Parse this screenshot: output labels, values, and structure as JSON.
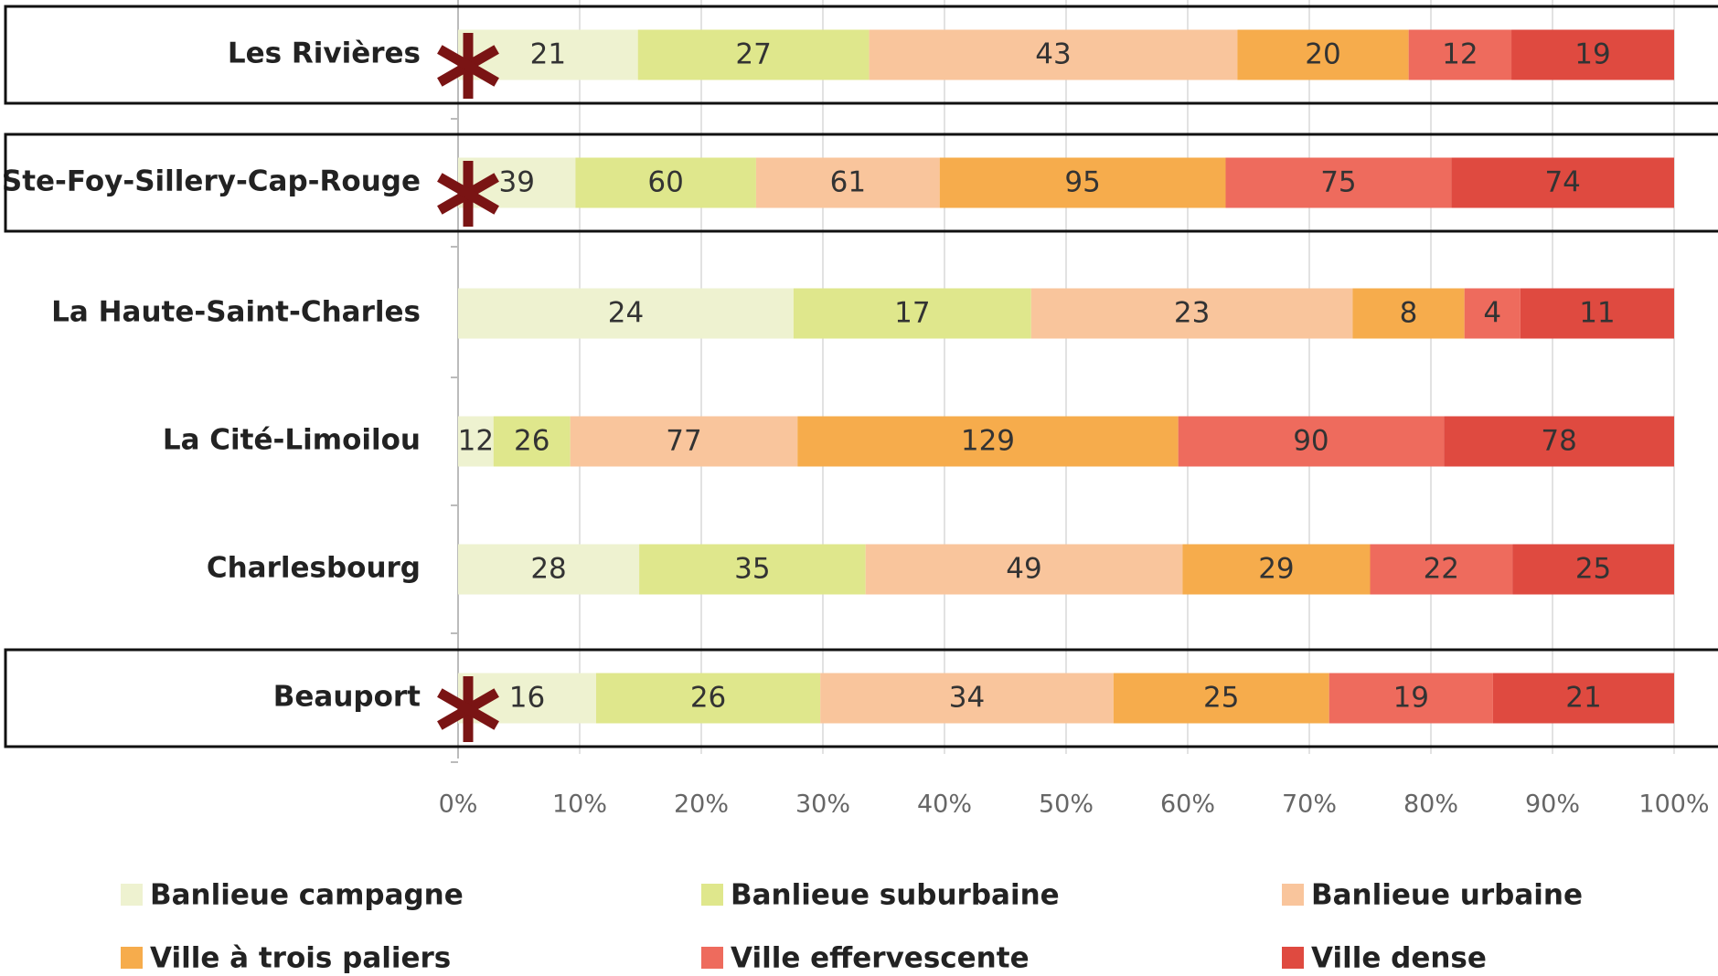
{
  "chart_data": {
    "type": "bar",
    "orientation": "horizontal",
    "stacking": "percent",
    "categories": [
      "Les Rivières",
      "Ste-Foy-Sillery-Cap-Rouge",
      "La Haute-Saint-Charles",
      "La Cité-Limoilou",
      "Charlesbourg",
      "Beauport"
    ],
    "series": [
      {
        "name": "Banlieue campagne",
        "color": "#eef2d0",
        "values": [
          21,
          39,
          24,
          12,
          28,
          16
        ]
      },
      {
        "name": "Banlieue suburbaine",
        "color": "#dfe78c",
        "values": [
          27,
          60,
          17,
          26,
          35,
          26
        ]
      },
      {
        "name": "Banlieue urbaine",
        "color": "#f9c59c",
        "values": [
          43,
          61,
          23,
          77,
          49,
          34
        ]
      },
      {
        "name": "Ville à trois paliers",
        "color": "#f6ac4c",
        "values": [
          20,
          95,
          8,
          129,
          29,
          25
        ]
      },
      {
        "name": "Ville effervescente",
        "color": "#ee6b5d",
        "values": [
          12,
          75,
          4,
          90,
          22,
          19
        ]
      },
      {
        "name": "Ville dense",
        "color": "#df4a40",
        "values": [
          19,
          74,
          11,
          78,
          25,
          21
        ]
      }
    ],
    "xlim": [
      0,
      100
    ],
    "xticks": [
      {
        "value": 0,
        "label": "0%"
      },
      {
        "value": 10,
        "label": "10%"
      },
      {
        "value": 20,
        "label": "20%"
      },
      {
        "value": 30,
        "label": "30%"
      },
      {
        "value": 40,
        "label": "40%"
      },
      {
        "value": 50,
        "label": "50%"
      },
      {
        "value": 60,
        "label": "60%"
      },
      {
        "value": 70,
        "label": "70%"
      },
      {
        "value": 80,
        "label": "80%"
      },
      {
        "value": 90,
        "label": "90%"
      },
      {
        "value": 100,
        "label": "100%"
      }
    ],
    "grid": true,
    "legend": "bottom",
    "highlight_rows": [
      0,
      1,
      5
    ],
    "highlight_color": "#7a1414"
  }
}
